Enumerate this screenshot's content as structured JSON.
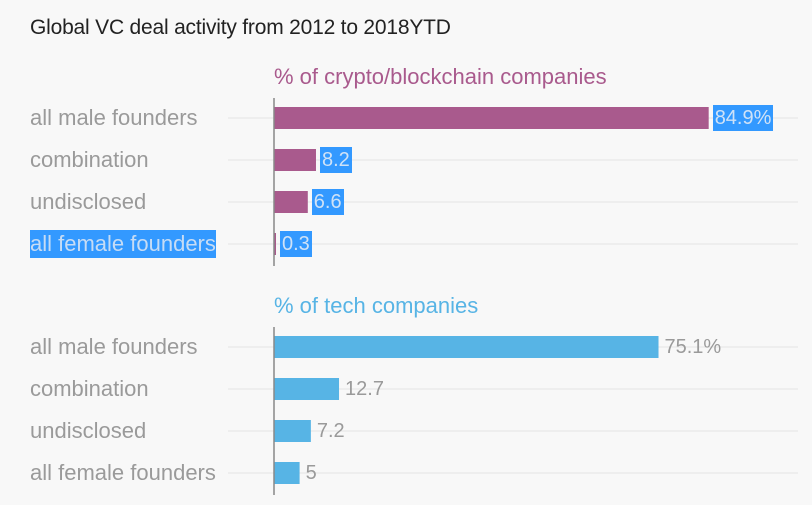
{
  "title": "Global VC deal activity from 2012 to 2018YTD",
  "colors": {
    "crypto": "#a95a8d",
    "tech": "#57b4e5",
    "grid": "#e4e4e4",
    "axis": "#888888",
    "selection": "#3399ff"
  },
  "chart_data": [
    {
      "type": "bar",
      "orientation": "horizontal",
      "title": "% of crypto/blockchain companies",
      "categories": [
        "all male founders",
        "combination",
        "undisclosed",
        "all female founders"
      ],
      "values": [
        84.9,
        8.2,
        6.6,
        0.3
      ],
      "value_labels": [
        "84.9%",
        "8.2",
        "6.6",
        "0.3"
      ],
      "color": "#a95a8d",
      "xlim": [
        0,
        100
      ]
    },
    {
      "type": "bar",
      "orientation": "horizontal",
      "title": "% of tech companies",
      "categories": [
        "all male founders",
        "combination",
        "undisclosed",
        "all female founders"
      ],
      "values": [
        75.1,
        12.7,
        7.2,
        5
      ],
      "value_labels": [
        "75.1%",
        "12.7",
        "7.2",
        "5"
      ],
      "color": "#57b4e5",
      "xlim": [
        0,
        100
      ]
    }
  ]
}
